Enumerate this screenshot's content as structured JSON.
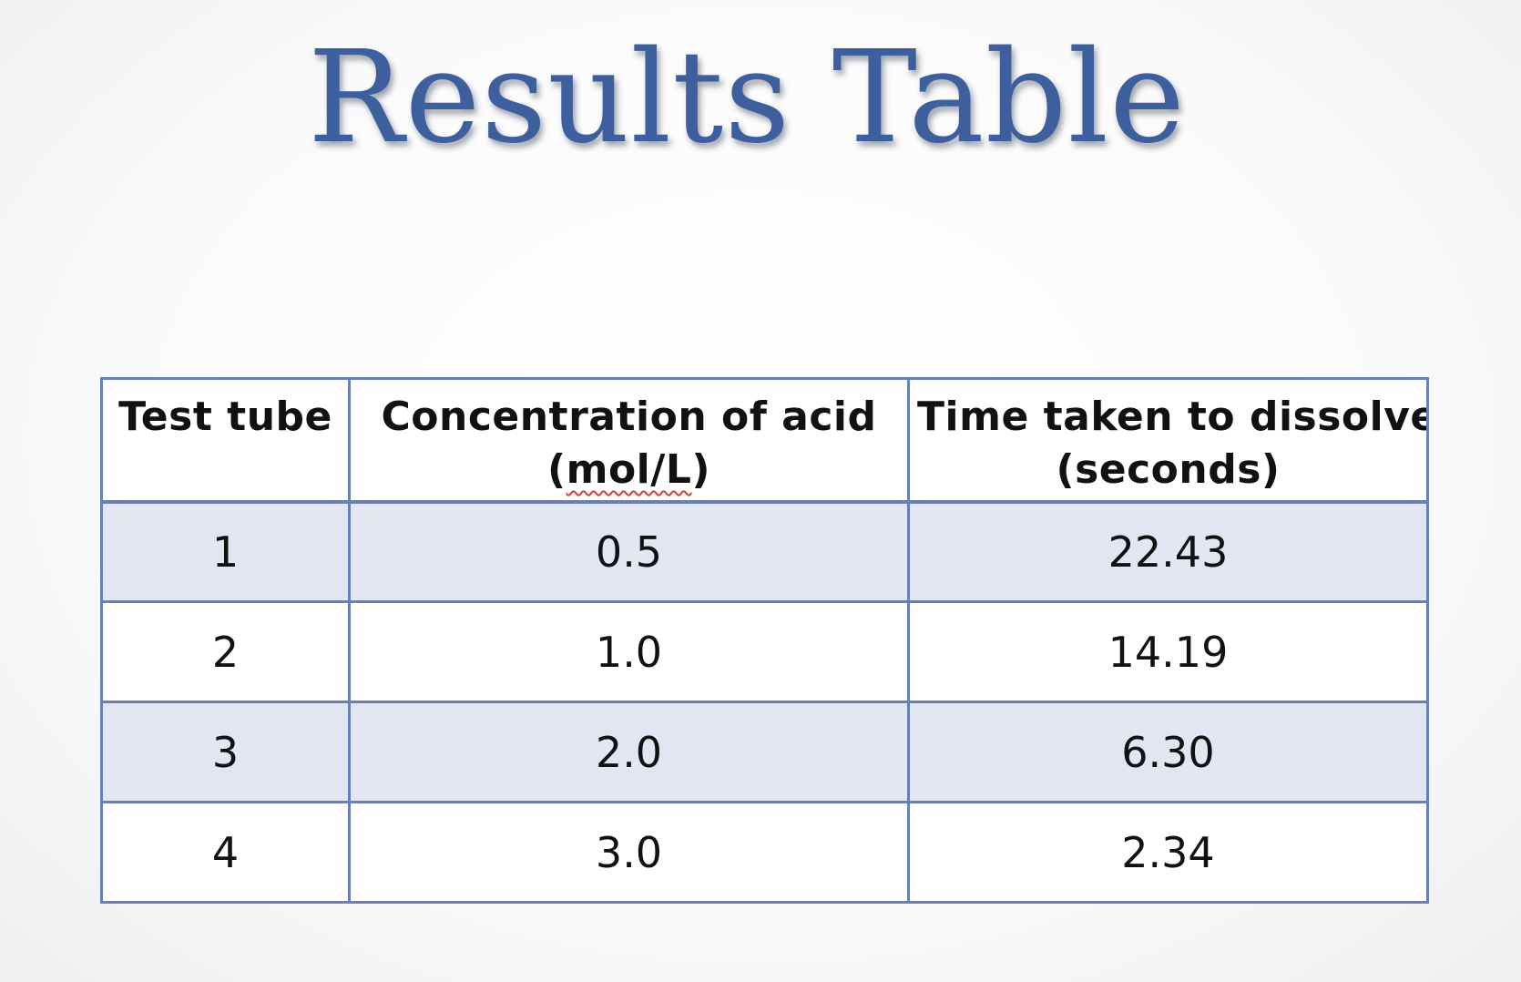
{
  "title": "Results Table",
  "table": {
    "headers": [
      {
        "line1": "Test tube",
        "line2": ""
      },
      {
        "line1": "Concentration of acid",
        "line2_pre": "(",
        "line2_word": "mol/L",
        "line2_post": ")"
      },
      {
        "line1": "Time taken to dissolve",
        "line2": "(seconds)"
      }
    ],
    "rows": [
      {
        "test_tube": "1",
        "concentration": "0.5",
        "time": "22.43"
      },
      {
        "test_tube": "2",
        "concentration": "1.0",
        "time": "14.19"
      },
      {
        "test_tube": "3",
        "concentration": "2.0",
        "time": "6.30"
      },
      {
        "test_tube": "4",
        "concentration": "3.0",
        "time": "2.34"
      }
    ]
  },
  "colors": {
    "title": "#3d5f9e",
    "border": "#6a7fb8",
    "shaded_row": "#e2e6f1",
    "spellcheck_underline": "#d23c3c"
  }
}
